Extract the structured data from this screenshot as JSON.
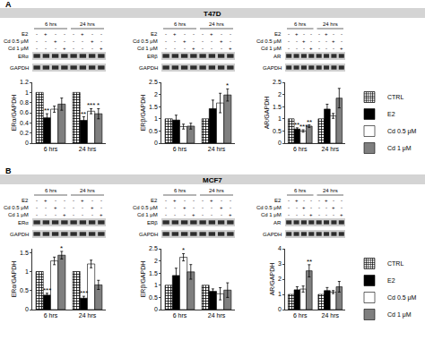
{
  "panels": [
    {
      "label": "A",
      "title": "T47D",
      "treatments": [
        {
          "label": "E2",
          "signs": [
            "-",
            "+",
            "-",
            "-",
            "-",
            "+",
            "-",
            "-"
          ]
        },
        {
          "label": "Cd 0.5 μM",
          "signs": [
            "-",
            "-",
            "+",
            "-",
            "-",
            "-",
            "+",
            "-"
          ]
        },
        {
          "label": "Cd 1 μM",
          "signs": [
            "-",
            "-",
            "-",
            "+",
            "-",
            "-",
            "-",
            "+"
          ]
        }
      ]
    },
    {
      "label": "B",
      "title": "MCF7",
      "treatments": [
        {
          "label": "E2",
          "signs": [
            "-",
            "+",
            "-",
            "-",
            "-",
            "+",
            "-",
            "-"
          ]
        },
        {
          "label": "Cd 0.5 μM",
          "signs": [
            "-",
            "-",
            "+",
            "-",
            "-",
            "-",
            "+",
            "-"
          ]
        },
        {
          "label": "Cd 1 μM",
          "signs": [
            "-",
            "-",
            "-",
            "+",
            "-",
            "-",
            "-",
            "+"
          ]
        }
      ]
    }
  ],
  "chart_data": [
    {
      "panel": "A",
      "type": "bar",
      "blot": [
        "ERα",
        "GAPDH"
      ],
      "y_label": "ERα/GAPDH",
      "categories": [
        "6 hrs",
        "24 hrs"
      ],
      "ylim": [
        0,
        1.2
      ],
      "yticks": [
        0,
        0.2,
        0.4,
        0.6,
        0.8,
        1,
        1.2
      ],
      "grid": false,
      "series": [
        {
          "name": "CTRL",
          "color": "#ffffff",
          "marker": "checkered",
          "values": [
            1,
            1
          ],
          "stars": [
            null,
            null
          ]
        },
        {
          "name": "E2",
          "color": "#000000",
          "values": [
            0.5,
            0.45
          ],
          "errors": [
            0.08,
            0.07
          ],
          "stars": [
            "**",
            "**"
          ]
        },
        {
          "name": "Cd 0.5 μM",
          "color": "#ffffff",
          "values": [
            0.67,
            0.63
          ],
          "errors": [
            0.06,
            0.05
          ],
          "stars": [
            null,
            "***"
          ]
        },
        {
          "name": "Cd 1 μM",
          "color": "#7f7f7f",
          "values": [
            0.77,
            0.58
          ],
          "errors": [
            0.12,
            0.1
          ],
          "stars": [
            null,
            "*"
          ]
        }
      ]
    },
    {
      "panel": "A",
      "type": "bar",
      "blot": [
        "ERβ",
        "GAPDH"
      ],
      "y_label": "ERβ/GAPDH",
      "categories": [
        "6 hrs",
        "24 hrs"
      ],
      "ylim": [
        0,
        2.5
      ],
      "yticks": [
        0,
        0.5,
        1,
        1.5,
        2,
        2.5
      ],
      "grid": false,
      "series": [
        {
          "name": "CTRL",
          "color": "#ffffff",
          "marker": "checkered",
          "values": [
            1,
            1
          ],
          "stars": [
            null,
            null
          ]
        },
        {
          "name": "E2",
          "color": "#000000",
          "values": [
            0.95,
            1.42
          ],
          "errors": [
            0.2,
            0.35
          ],
          "stars": [
            null,
            null
          ]
        },
        {
          "name": "Cd 0.5 μM",
          "color": "#ffffff",
          "values": [
            0.68,
            1.65
          ],
          "errors": [
            0.1,
            0.4
          ],
          "stars": [
            null,
            null
          ]
        },
        {
          "name": "Cd 1 μM",
          "color": "#7f7f7f",
          "values": [
            0.7,
            1.98
          ],
          "errors": [
            0.12,
            0.25
          ],
          "stars": [
            null,
            "*"
          ]
        }
      ]
    },
    {
      "panel": "A",
      "type": "bar",
      "blot": [
        "AR",
        "GAPDH"
      ],
      "y_label": "AR/GAPDH",
      "legend": "right",
      "categories": [
        "6 hrs",
        "24 hrs"
      ],
      "ylim": [
        0,
        2.5
      ],
      "yticks": [
        0,
        0.5,
        1,
        1.5,
        2,
        2.5
      ],
      "grid": false,
      "series": [
        {
          "name": "CTRL",
          "color": "#ffffff",
          "marker": "checkered",
          "values": [
            1,
            1
          ],
          "stars": [
            null,
            null
          ]
        },
        {
          "name": "E2",
          "color": "#000000",
          "values": [
            0.58,
            1.4
          ],
          "errors": [
            0.05,
            0.2
          ],
          "stars": [
            "**",
            null
          ]
        },
        {
          "name": "Cd 0.5 μM",
          "color": "#ffffff",
          "values": [
            0.5,
            1.12
          ],
          "errors": [
            0.05,
            0.1
          ],
          "stars": [
            "***",
            null
          ]
        },
        {
          "name": "Cd 1 μM",
          "color": "#7f7f7f",
          "values": [
            0.7,
            1.85
          ],
          "errors": [
            0.05,
            0.4
          ],
          "stars": [
            "**",
            null
          ]
        }
      ]
    },
    {
      "panel": "B",
      "type": "bar",
      "blot": [
        "ERα",
        "GAPDH"
      ],
      "y_label": "ERα/GAPDH",
      "categories": [
        "6 hrs",
        "24 hrs"
      ],
      "ylim": [
        0,
        1.6
      ],
      "yticks": [
        0,
        0.5,
        1,
        1.5
      ],
      "grid": false,
      "series": [
        {
          "name": "CTRL",
          "color": "#ffffff",
          "marker": "checkered",
          "values": [
            1,
            1
          ],
          "stars": [
            null,
            null
          ]
        },
        {
          "name": "E2",
          "color": "#000000",
          "values": [
            0.38,
            0.3
          ],
          "errors": [
            0.05,
            0.05
          ],
          "stars": [
            "***",
            "***"
          ]
        },
        {
          "name": "Cd 0.5 μM",
          "color": "#ffffff",
          "values": [
            1.28,
            1.2
          ],
          "errors": [
            0.1,
            0.1
          ],
          "stars": [
            null,
            null
          ]
        },
        {
          "name": "Cd 1 μM",
          "color": "#7f7f7f",
          "values": [
            1.43,
            0.65
          ],
          "errors": [
            0.1,
            0.12
          ],
          "stars": [
            "*",
            null
          ]
        }
      ]
    },
    {
      "panel": "B",
      "type": "bar",
      "blot": [
        "ERβ",
        "GAPDH"
      ],
      "y_label": "ERβ/GAPDH",
      "categories": [
        "6 hrs",
        "24 hrs"
      ],
      "ylim": [
        0,
        2.5
      ],
      "yticks": [
        0,
        0.5,
        1,
        1.5,
        2,
        2.5
      ],
      "grid": false,
      "series": [
        {
          "name": "CTRL",
          "color": "#ffffff",
          "marker": "checkered",
          "values": [
            1,
            1
          ],
          "stars": [
            null,
            null
          ]
        },
        {
          "name": "E2",
          "color": "#000000",
          "values": [
            1.4,
            0.75
          ],
          "errors": [
            0.3,
            0.1
          ],
          "stars": [
            null,
            null
          ]
        },
        {
          "name": "Cd 0.5 μM",
          "color": "#ffffff",
          "values": [
            2.15,
            0.65
          ],
          "errors": [
            0.15,
            0.25
          ],
          "stars": [
            "*",
            null
          ]
        },
        {
          "name": "Cd 1 μM",
          "color": "#7f7f7f",
          "values": [
            1.55,
            0.8
          ],
          "errors": [
            0.3,
            0.3
          ],
          "stars": [
            null,
            null
          ]
        }
      ]
    },
    {
      "panel": "B",
      "type": "bar",
      "blot": [
        "AR",
        "GAPDH"
      ],
      "y_label": "AR/GAPDH",
      "legend": "right",
      "categories": [
        "6 hrs",
        "24 hrs"
      ],
      "ylim": [
        0,
        4
      ],
      "yticks": [
        0,
        1,
        2,
        3,
        4
      ],
      "grid": false,
      "series": [
        {
          "name": "CTRL",
          "color": "#ffffff",
          "marker": "checkered",
          "values": [
            1,
            1
          ],
          "stars": [
            null,
            null
          ]
        },
        {
          "name": "E2",
          "color": "#000000",
          "values": [
            1.3,
            1.25
          ],
          "errors": [
            0.2,
            0.2
          ],
          "stars": [
            null,
            null
          ]
        },
        {
          "name": "Cd 0.5 μM",
          "color": "#ffffff",
          "values": [
            1.35,
            1.15
          ],
          "errors": [
            0.2,
            0.1
          ],
          "stars": [
            null,
            null
          ]
        },
        {
          "name": "Cd 1 μM",
          "color": "#7f7f7f",
          "values": [
            2.55,
            1.5
          ],
          "errors": [
            0.4,
            0.35
          ],
          "stars": [
            "**",
            null
          ]
        }
      ]
    }
  ]
}
